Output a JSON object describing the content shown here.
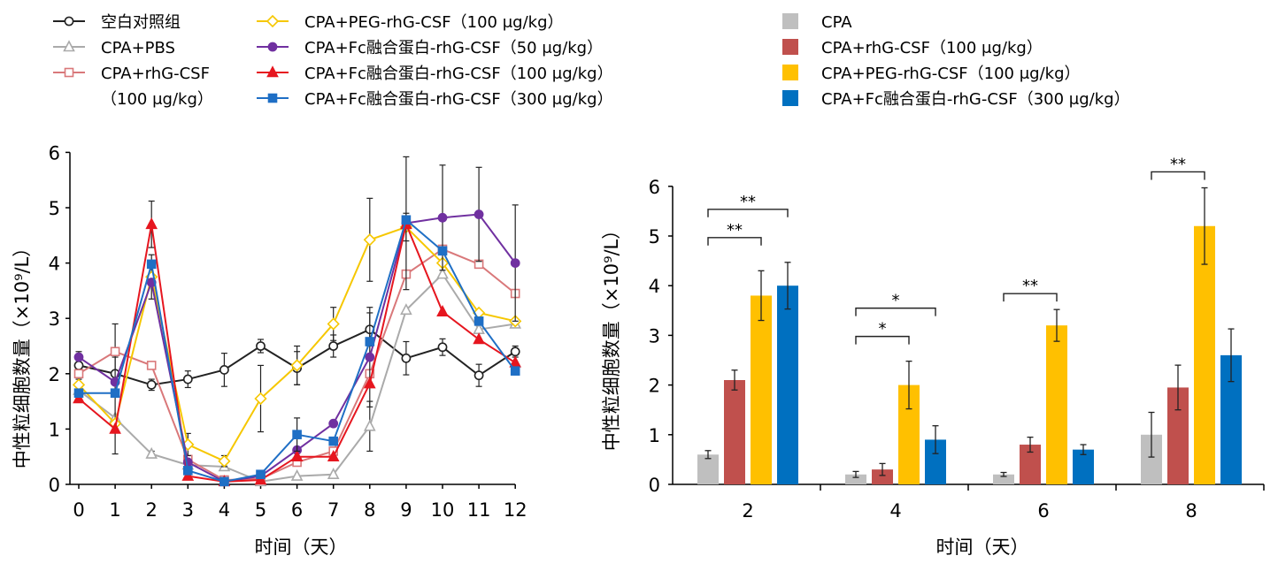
{
  "legend_left": [
    {
      "label": "空白对照组",
      "series": 0
    },
    {
      "label": "CPA+PBS",
      "series": 1
    },
    {
      "label": "CPA+rhG-CSF",
      "label2": "（100 μg/kg）",
      "series": 2
    },
    {
      "label": "CPA+PEG-rhG-CSF（100 μg/kg）",
      "series": 3
    },
    {
      "label": "CPA+Fc融合蛋白-rhG-CSF（50 μg/kg）",
      "series": 4
    },
    {
      "label": "CPA+Fc融合蛋白-rhG-CSF（100 μg/kg）",
      "series": 5
    },
    {
      "label": "CPA+Fc融合蛋白-rhG-CSF（300 μg/kg）",
      "series": 6
    }
  ],
  "legend_right": [
    {
      "label": "CPA",
      "series": 0
    },
    {
      "label": "CPA+rhG-CSF（100 μg/kg）",
      "series": 1
    },
    {
      "label": "CPA+PEG-rhG-CSF（100 μg/kg）",
      "series": 2
    },
    {
      "label": "CPA+Fc融合蛋白-rhG-CSF（300 μg/kg）",
      "series": 3
    }
  ],
  "chart_data": [
    {
      "type": "line",
      "xlabel": "时间（天）",
      "ylabel": "中性粒细胞数量（×10⁹/L）",
      "x": [
        0,
        1,
        2,
        3,
        4,
        5,
        6,
        7,
        8,
        9,
        10,
        11,
        12
      ],
      "xlim": [
        0,
        12
      ],
      "ylim": [
        0,
        6
      ],
      "yticks": [
        0,
        1,
        2,
        3,
        4,
        5,
        6
      ],
      "grid": false,
      "legend_position": "top-left",
      "series": [
        {
          "name": "空白对照组",
          "color": "#222222",
          "marker": "circle-open",
          "values": [
            2.15,
            2.0,
            1.8,
            1.9,
            2.07,
            2.5,
            2.1,
            2.5,
            2.8,
            2.28,
            2.48,
            1.97,
            2.4
          ],
          "errors": [
            0.25,
            0.3,
            0.1,
            0.15,
            0.3,
            0.12,
            0.3,
            0.2,
            0.3,
            0.3,
            0.15,
            0.2,
            0.1
          ]
        },
        {
          "name": "CPA+PBS",
          "color": "#aaaaaa",
          "marker": "triangle-open",
          "values": [
            1.7,
            1.2,
            0.55,
            0.35,
            0.32,
            0.05,
            0.15,
            0.18,
            1.05,
            3.15,
            3.8,
            2.8,
            2.9
          ],
          "errors": [
            0,
            0,
            0.05,
            0,
            0,
            0,
            0,
            0,
            0.45,
            0,
            0,
            0,
            0
          ]
        },
        {
          "name": "CPA+rhG-CSF（100 μg/kg）",
          "color": "#d9787a",
          "marker": "square-open",
          "values": [
            2.0,
            2.4,
            2.15,
            0.45,
            0.08,
            0.1,
            0.4,
            0.6,
            2.0,
            3.8,
            4.25,
            3.98,
            3.45
          ],
          "errors": [
            0,
            0.5,
            0,
            0,
            0,
            0,
            0,
            0,
            0,
            0,
            0,
            0,
            0
          ]
        },
        {
          "name": "CPA+PEG-rhG-CSF（100 μg/kg）",
          "color": "#f6c700",
          "marker": "diamond-open",
          "values": [
            1.8,
            1.1,
            3.75,
            0.72,
            0.42,
            1.55,
            2.15,
            2.9,
            4.42,
            4.65,
            4.0,
            3.1,
            2.95
          ],
          "errors": [
            0,
            0.55,
            0.4,
            0.2,
            0.1,
            0.6,
            0.35,
            0.3,
            0.75,
            0.25,
            0,
            0,
            0
          ]
        },
        {
          "name": "CPA+Fc融合蛋白-rhG-CSF（50 μg/kg）",
          "color": "#7030a0",
          "marker": "circle-filled",
          "values": [
            2.3,
            1.85,
            3.65,
            0.4,
            0.05,
            0.15,
            0.62,
            1.1,
            2.3,
            4.72,
            4.82,
            4.88,
            4.0
          ],
          "errors": [
            0,
            0,
            0,
            0,
            0,
            0,
            0,
            0,
            0.9,
            1.2,
            0.95,
            0.85,
            1.05
          ]
        },
        {
          "name": "CPA+Fc融合蛋白-rhG-CSF（100 μg/kg）",
          "color": "#e6161f",
          "marker": "triangle-filled",
          "values": [
            1.55,
            1.0,
            4.7,
            0.15,
            0.05,
            0.08,
            0.5,
            0.5,
            1.82,
            4.7,
            3.12,
            2.62,
            2.2
          ],
          "errors": [
            0,
            0,
            0.42,
            0,
            0,
            0,
            0,
            0,
            0,
            0,
            0,
            0,
            0
          ]
        },
        {
          "name": "CPA+Fc融合蛋白-rhG-CSF（300 μg/kg）",
          "color": "#1f6fc5",
          "marker": "square-filled",
          "values": [
            1.65,
            1.65,
            3.98,
            0.25,
            0.05,
            0.18,
            0.9,
            0.78,
            2.58,
            4.78,
            4.22,
            2.95,
            2.05
          ],
          "errors": [
            0,
            0,
            0,
            0,
            0,
            0,
            0.3,
            0,
            0,
            0,
            0,
            0,
            0
          ]
        }
      ]
    },
    {
      "type": "bar",
      "xlabel": "时间（天）",
      "ylabel": "中性粒细胞数量（×10⁹/L）",
      "categories": [
        "2",
        "4",
        "6",
        "8"
      ],
      "ylim": [
        0,
        6
      ],
      "yticks": [
        0,
        1,
        2,
        3,
        4,
        5,
        6
      ],
      "grid": false,
      "legend_position": "top-right",
      "series": [
        {
          "name": "CPA",
          "color": "#bfbfbf",
          "values": [
            0.6,
            0.2,
            0.2,
            1.0
          ],
          "errors": [
            0.08,
            0.06,
            0.04,
            0.45
          ]
        },
        {
          "name": "CPA+rhG-CSF（100 μg/kg）",
          "color": "#c0504d",
          "values": [
            2.1,
            0.3,
            0.8,
            1.95
          ],
          "errors": [
            0.2,
            0.12,
            0.15,
            0.45
          ]
        },
        {
          "name": "CPA+PEG-rhG-CSF（100 μg/kg）",
          "color": "#ffc000",
          "values": [
            3.8,
            2.0,
            3.2,
            5.2
          ],
          "errors": [
            0.5,
            0.48,
            0.32,
            0.77
          ]
        },
        {
          "name": "CPA+Fc融合蛋白-rhG-CSF（300 μg/kg）",
          "color": "#0070c0",
          "values": [
            4.0,
            0.9,
            0.7,
            2.6
          ],
          "errors": [
            0.47,
            0.28,
            0.1,
            0.53
          ]
        }
      ],
      "significance": [
        {
          "category": 0,
          "from_series": 0,
          "to_series": 3,
          "label": "**"
        },
        {
          "category": 0,
          "from_series": 0,
          "to_series": 2,
          "label": "**"
        },
        {
          "category": 1,
          "from_series": 0,
          "to_series": 3,
          "label": "*"
        },
        {
          "category": 1,
          "from_series": 0,
          "to_series": 2,
          "label": "*"
        },
        {
          "category": 2,
          "from_series": 0,
          "to_series": 2,
          "label": "**"
        },
        {
          "category": 3,
          "from_series": 0,
          "to_series": 2,
          "label": "**"
        }
      ]
    }
  ]
}
